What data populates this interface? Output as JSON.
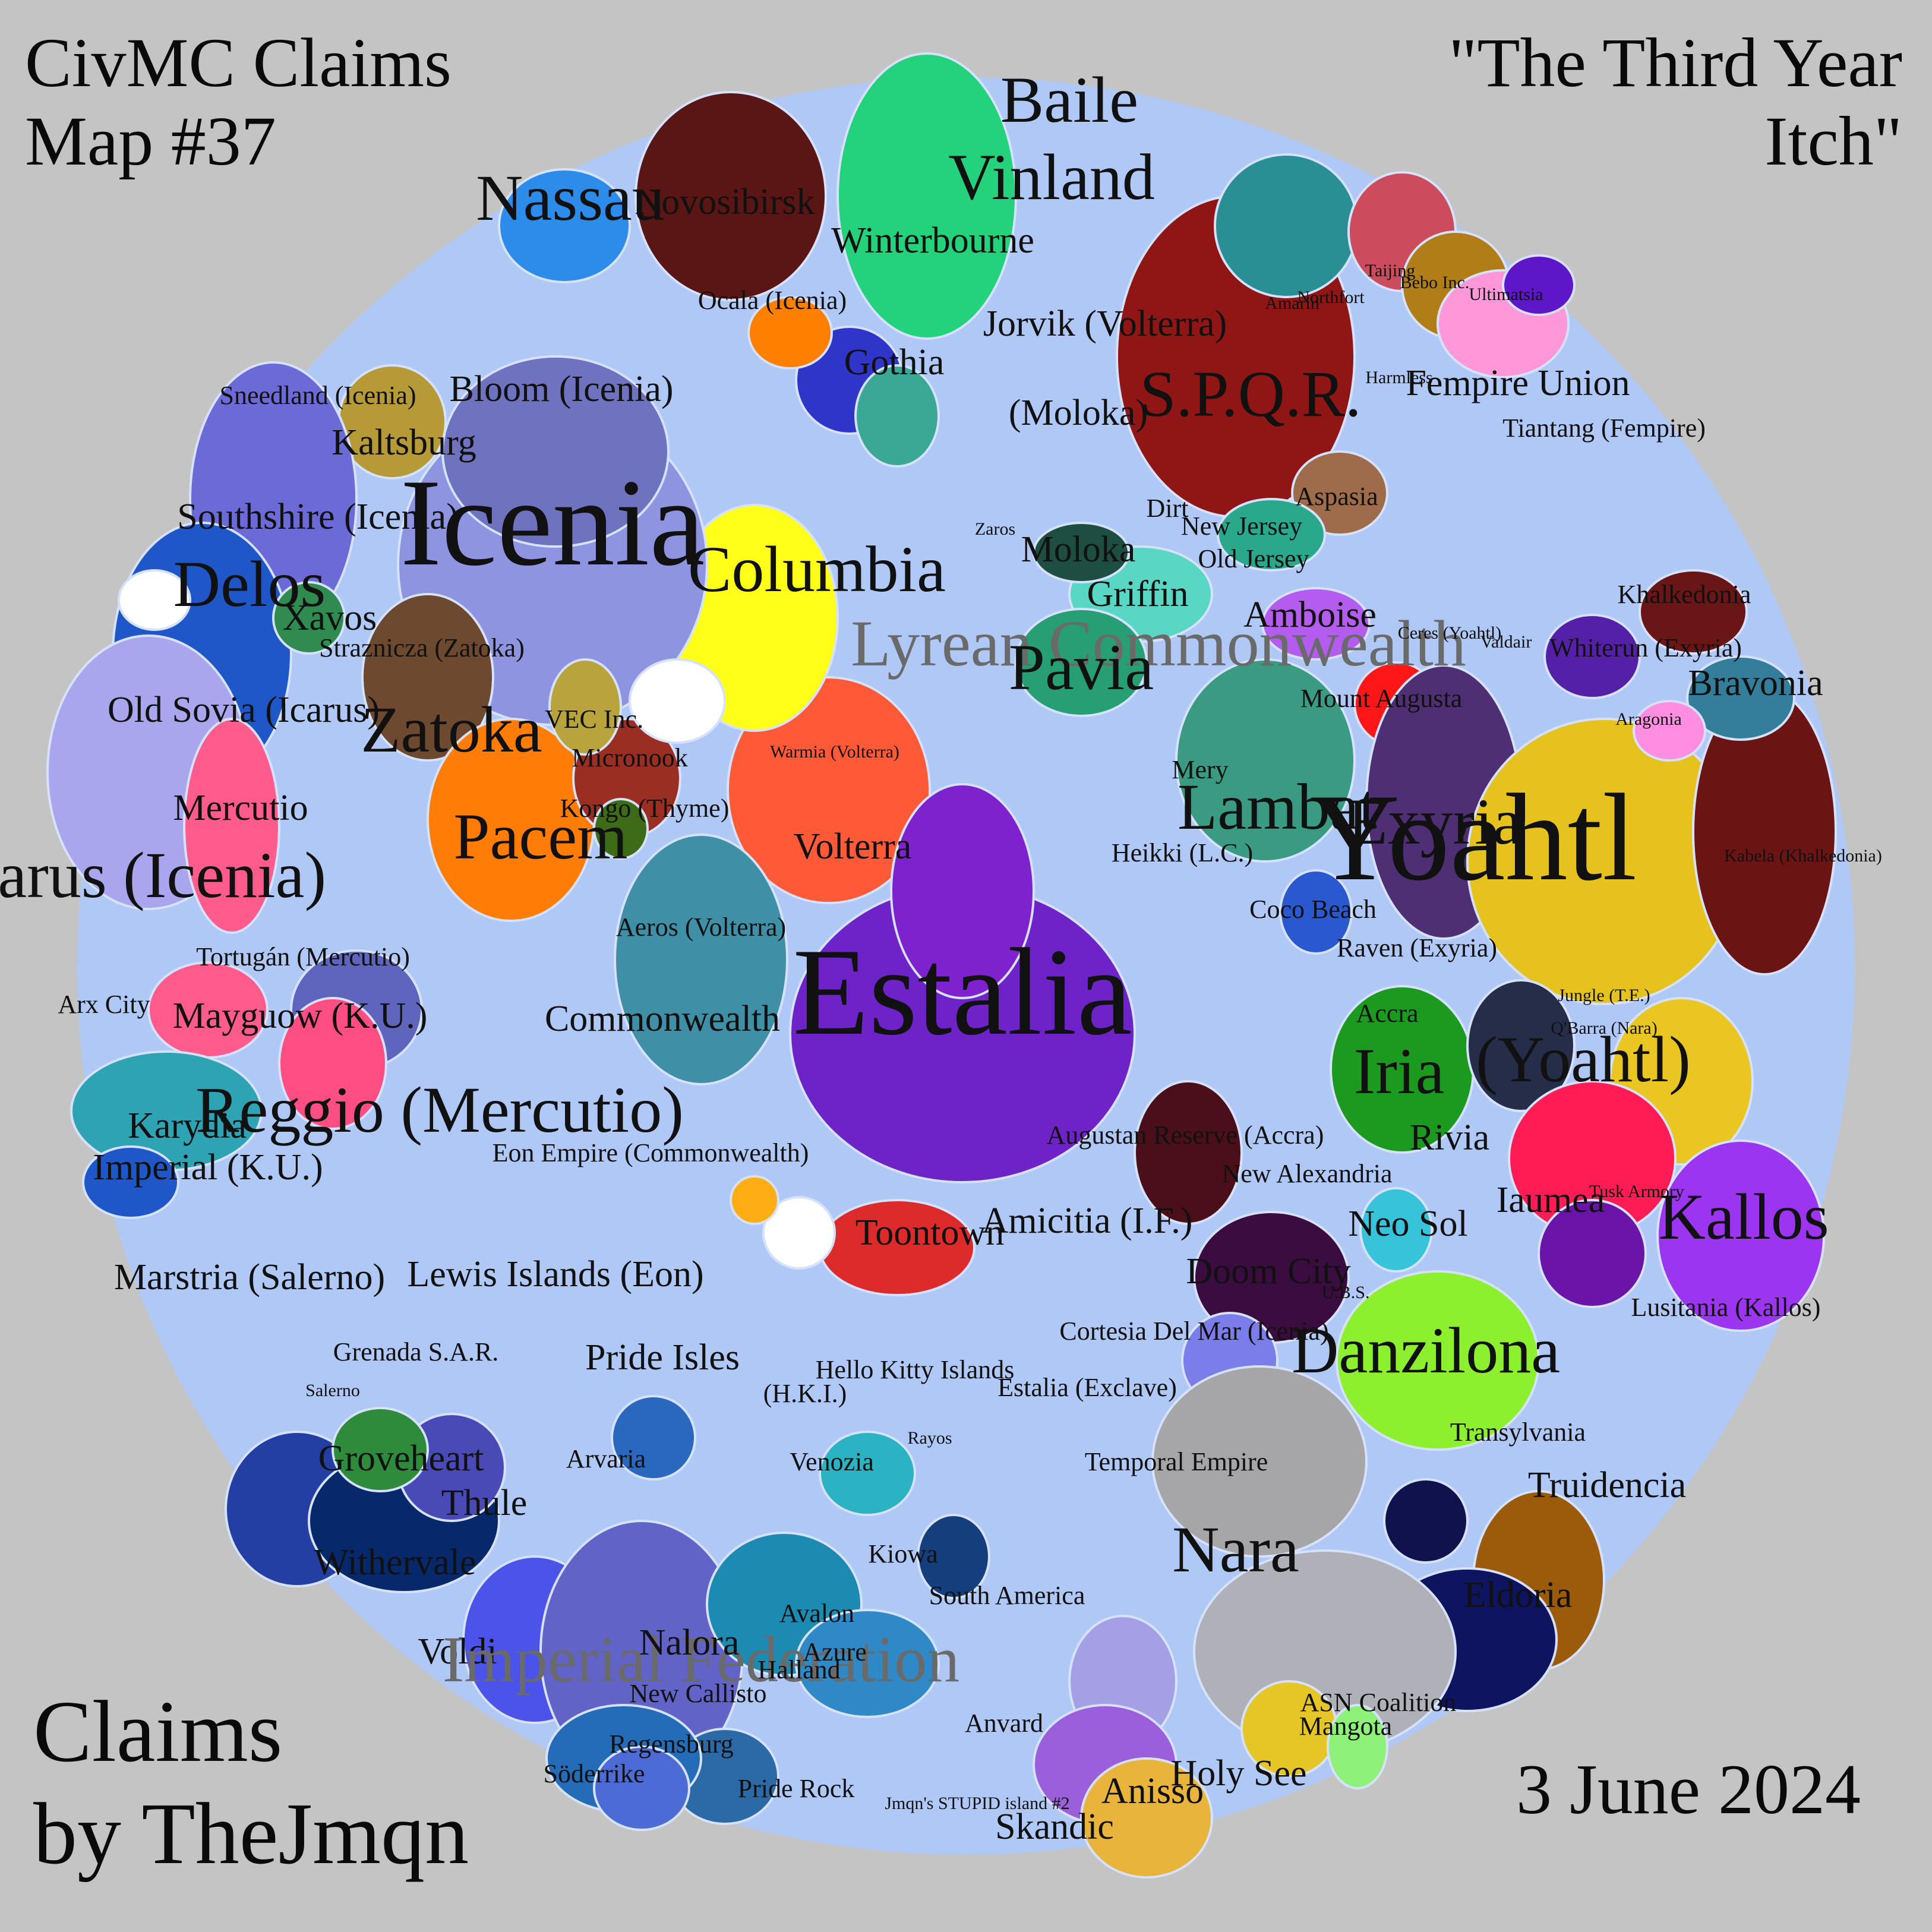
{
  "header": {
    "title_lines": [
      "CivMC Claims",
      "Map #37"
    ],
    "subtitle_lines": [
      "\"The Third Year",
      "Itch\""
    ]
  },
  "footer": {
    "credit_lines": [
      "Claims",
      "by TheJmqn"
    ],
    "date": "3 June 2024"
  },
  "colors": {
    "background": "#c4c4c4",
    "ocean": "#afc8f5",
    "land": "#ffffff",
    "border": "#d6e2fb"
  },
  "map": {
    "labels": [
      {
        "text": "Estalia",
        "size": "huge"
      },
      {
        "text": "Icenia",
        "size": "huge"
      },
      {
        "text": "Yoahtl",
        "size": "huge"
      },
      {
        "text": "Nassau",
        "size": "big"
      },
      {
        "text": "Winterbourne",
        "size": "med"
      },
      {
        "text": "Baile",
        "size": "big"
      },
      {
        "text": "Vinland",
        "size": "big"
      },
      {
        "text": "Novosibirsk",
        "size": "med"
      },
      {
        "text": "Bloom (Icenia)",
        "size": "med"
      },
      {
        "text": "Kaltsburg",
        "size": "med"
      },
      {
        "text": "Sneedland (Icenia)",
        "size": "sm"
      },
      {
        "text": "Southshire (Icenia)",
        "size": "med"
      },
      {
        "text": "Delos",
        "size": "big"
      },
      {
        "text": "Xavos",
        "size": "med"
      },
      {
        "text": "Straznicza (Zatoka)",
        "size": "sm"
      },
      {
        "text": "Old Sovia (Icarus)",
        "size": "med"
      },
      {
        "text": "Zatoka",
        "size": "big"
      },
      {
        "text": "VEC Inc.",
        "size": "sm"
      },
      {
        "text": "Mercutio",
        "size": "med"
      },
      {
        "text": "Pacem",
        "size": "big"
      },
      {
        "text": "Icarus (Icenia)",
        "size": "big"
      },
      {
        "text": "Columbia",
        "size": "big"
      },
      {
        "text": "Gothia",
        "size": "med"
      },
      {
        "text": "Ocala (Icenia)",
        "size": "sm"
      },
      {
        "text": "Jorvik (Volterra)",
        "size": "med"
      },
      {
        "text": "S.P.Q.R.",
        "size": "big"
      },
      {
        "text": "Fempire Union",
        "size": "med"
      },
      {
        "text": "Tiantang (Fempire)",
        "size": "sm"
      },
      {
        "text": "(Moloka)",
        "size": "med"
      },
      {
        "text": "Moloka",
        "size": "med"
      },
      {
        "text": "Griffin",
        "size": "med"
      },
      {
        "text": "Lyrean Commonwealth",
        "size": "big",
        "faint": true
      },
      {
        "text": "Pavia",
        "size": "big"
      },
      {
        "text": "Amboise",
        "size": "med"
      },
      {
        "text": "Aspasia",
        "size": "sm"
      },
      {
        "text": "New Jersey",
        "size": "sm"
      },
      {
        "text": "Old Jersey",
        "size": "sm"
      },
      {
        "text": "Dirt",
        "size": "sm"
      },
      {
        "text": "Mount Augusta",
        "size": "sm"
      },
      {
        "text": "Khalkedonia",
        "size": "sm"
      },
      {
        "text": "Bravonia",
        "size": "med"
      },
      {
        "text": "Whiterun (Exyria)",
        "size": "sm"
      },
      {
        "text": "Exyria",
        "size": "big"
      },
      {
        "text": "Lambat",
        "size": "big"
      },
      {
        "text": "Mery",
        "size": "sm"
      },
      {
        "text": "Heikki (L.C.)",
        "size": "sm"
      },
      {
        "text": "Volterra",
        "size": "med"
      },
      {
        "text": "Warmia (Volterra)",
        "size": "xs"
      },
      {
        "text": "Kongo (Thyme)",
        "size": "sm"
      },
      {
        "text": "Micronook",
        "size": "sm"
      },
      {
        "text": "Aeros (Volterra)",
        "size": "sm"
      },
      {
        "text": "Commonwealth",
        "size": "med"
      },
      {
        "text": "Mayguow (K.U.)",
        "size": "med"
      },
      {
        "text": "Tortugán (Mercutio)",
        "size": "sm"
      },
      {
        "text": "Reggio (Mercutio)",
        "size": "big"
      },
      {
        "text": "Karydia",
        "size": "med"
      },
      {
        "text": "Imperial (K.U.)",
        "size": "med"
      },
      {
        "text": "Arx City",
        "size": "sm"
      },
      {
        "text": "Coco Beach",
        "size": "sm"
      },
      {
        "text": "Raven (Exyria)",
        "size": "sm"
      },
      {
        "text": "Accra",
        "size": "sm"
      },
      {
        "text": "Iria",
        "size": "big"
      },
      {
        "text": "Rivia",
        "size": "med"
      },
      {
        "text": "(Yoahtl)",
        "size": "big"
      },
      {
        "text": "Iaumea",
        "size": "med"
      },
      {
        "text": "Kallos",
        "size": "big"
      },
      {
        "text": "Lusitania (Kallos)",
        "size": "sm"
      },
      {
        "text": "Augustan Reserve (Accra)",
        "size": "sm"
      },
      {
        "text": "New Alexandria",
        "size": "sm"
      },
      {
        "text": "Neo Sol",
        "size": "med"
      },
      {
        "text": "Doom City",
        "size": "med"
      },
      {
        "text": "Amicitia (I.F.)",
        "size": "med"
      },
      {
        "text": "Toontown",
        "size": "med"
      },
      {
        "text": "Eon Empire (Commonwealth)",
        "size": "sm"
      },
      {
        "text": "Lewis Islands (Eon)",
        "size": "med"
      },
      {
        "text": "Marstria (Salerno)",
        "size": "med"
      },
      {
        "text": "Grenada S.A.R.",
        "size": "sm"
      },
      {
        "text": "Pride Isles",
        "size": "med"
      },
      {
        "text": "(H.K.I.)",
        "size": "sm"
      },
      {
        "text": "Hello Kitty Islands",
        "size": "sm"
      },
      {
        "text": "Danzilona",
        "size": "big"
      },
      {
        "text": "Cortesia Del Mar (Icenia)",
        "size": "sm"
      },
      {
        "text": "Estalia (Exclave)",
        "size": "sm"
      },
      {
        "text": "Temporal Empire",
        "size": "sm"
      },
      {
        "text": "Transylvania",
        "size": "sm"
      },
      {
        "text": "Truidencia",
        "size": "med"
      },
      {
        "text": "Nara",
        "size": "big"
      },
      {
        "text": "Eldoria",
        "size": "med"
      },
      {
        "text": "Groveheart",
        "size": "med"
      },
      {
        "text": "Thule",
        "size": "med"
      },
      {
        "text": "Withervale",
        "size": "med"
      },
      {
        "text": "Voldi",
        "size": "med"
      },
      {
        "text": "Arvaria",
        "size": "sm"
      },
      {
        "text": "Imperial Federation",
        "size": "big",
        "faint": true
      },
      {
        "text": "Nalora",
        "size": "med"
      },
      {
        "text": "Venozia",
        "size": "sm"
      },
      {
        "text": "Kiowa",
        "size": "sm"
      },
      {
        "text": "South America",
        "size": "sm"
      },
      {
        "text": "Avalon",
        "size": "sm"
      },
      {
        "text": "Azure",
        "size": "sm"
      },
      {
        "text": "Halland",
        "size": "sm"
      },
      {
        "text": "New Callisto",
        "size": "sm"
      },
      {
        "text": "Regensburg",
        "size": "sm"
      },
      {
        "text": "Söderrike",
        "size": "sm"
      },
      {
        "text": "Pride Rock",
        "size": "sm"
      },
      {
        "text": "Anvard",
        "size": "sm"
      },
      {
        "text": "Anisso",
        "size": "med"
      },
      {
        "text": "Skandic",
        "size": "med"
      },
      {
        "text": "Holy See",
        "size": "med"
      },
      {
        "text": "Mangota",
        "size": "sm"
      },
      {
        "text": "ASN Coalition",
        "size": "sm"
      },
      {
        "text": "Jmqn's STUPID island #2",
        "size": "xs"
      },
      {
        "text": "Rayos",
        "size": "xs"
      },
      {
        "text": "Salerno",
        "size": "xs"
      },
      {
        "text": "Ultimatsia",
        "size": "xs"
      },
      {
        "text": "Bebo Inc.",
        "size": "xs"
      },
      {
        "text": "Taijing",
        "size": "xs"
      },
      {
        "text": "Northfort",
        "size": "xs"
      },
      {
        "text": "Harmless",
        "size": "xs"
      },
      {
        "text": "Amarin",
        "size": "xs"
      },
      {
        "text": "Zaros",
        "size": "xs"
      },
      {
        "text": "Ceres (Yoahtl)",
        "size": "xs"
      },
      {
        "text": "Valdair",
        "size": "xs"
      },
      {
        "text": "Aragonia",
        "size": "xs"
      },
      {
        "text": "Kabela (Khalkedonia)",
        "size": "xs"
      },
      {
        "text": "Jungle (T.E.)",
        "size": "xs"
      },
      {
        "text": "Q'Barra (Nara)",
        "size": "xs"
      },
      {
        "text": "Tusk Armory",
        "size": "xs"
      },
      {
        "text": "U.B.S.",
        "size": "xs"
      }
    ]
  }
}
